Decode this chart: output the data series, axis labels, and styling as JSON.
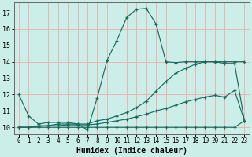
{
  "xlabel": "Humidex (Indice chaleur)",
  "xlim": [
    -0.5,
    23.5
  ],
  "ylim": [
    9.6,
    17.6
  ],
  "xticks": [
    0,
    1,
    2,
    3,
    4,
    5,
    6,
    7,
    8,
    9,
    10,
    11,
    12,
    13,
    14,
    15,
    16,
    17,
    18,
    19,
    20,
    21,
    22,
    23
  ],
  "yticks": [
    10,
    11,
    12,
    13,
    14,
    15,
    16,
    17
  ],
  "background_color": "#cceee8",
  "grid_color": "#e8b4b4",
  "line_color": "#1a6b5e",
  "lines": [
    {
      "x": [
        0,
        1,
        2,
        3,
        4,
        5,
        6,
        7,
        8,
        9,
        10,
        11,
        12,
        13,
        14,
        15,
        16,
        17,
        18,
        19,
        20,
        21,
        22,
        23
      ],
      "y": [
        12.0,
        10.7,
        10.2,
        10.3,
        10.3,
        10.3,
        10.2,
        9.85,
        11.8,
        14.1,
        15.3,
        16.7,
        17.2,
        17.25,
        16.3,
        14.0,
        13.95,
        14.0,
        14.0,
        14.0,
        14.0,
        14.0,
        14.0,
        14.0
      ]
    },
    {
      "x": [
        0,
        1,
        2,
        3,
        4,
        5,
        6,
        7,
        8,
        9,
        10,
        11,
        12,
        13,
        14,
        15,
        16,
        17,
        18,
        19,
        20,
        21,
        22,
        23
      ],
      "y": [
        10.0,
        10.0,
        10.1,
        10.1,
        10.2,
        10.2,
        10.2,
        10.2,
        10.4,
        10.5,
        10.7,
        10.9,
        11.2,
        11.6,
        12.2,
        12.8,
        13.3,
        13.6,
        13.85,
        14.0,
        14.0,
        13.9,
        13.9,
        10.4
      ]
    },
    {
      "x": [
        0,
        1,
        2,
        3,
        4,
        5,
        6,
        7,
        8,
        9,
        10,
        11,
        12,
        13,
        14,
        15,
        16,
        17,
        18,
        19,
        20,
        21,
        22,
        23
      ],
      "y": [
        10.0,
        10.0,
        10.05,
        10.1,
        10.1,
        10.15,
        10.15,
        10.15,
        10.2,
        10.3,
        10.4,
        10.5,
        10.65,
        10.8,
        11.0,
        11.15,
        11.35,
        11.55,
        11.7,
        11.85,
        11.95,
        11.85,
        12.25,
        10.4
      ]
    },
    {
      "x": [
        0,
        1,
        2,
        3,
        4,
        5,
        6,
        7,
        8,
        9,
        10,
        11,
        12,
        13,
        14,
        15,
        16,
        17,
        18,
        19,
        20,
        21,
        22,
        23
      ],
      "y": [
        10.0,
        10.0,
        10.0,
        10.0,
        10.0,
        10.0,
        10.0,
        10.0,
        10.0,
        10.0,
        10.0,
        10.0,
        10.0,
        10.0,
        10.0,
        10.0,
        10.0,
        10.0,
        10.0,
        10.0,
        10.0,
        10.0,
        10.0,
        10.4
      ]
    }
  ]
}
